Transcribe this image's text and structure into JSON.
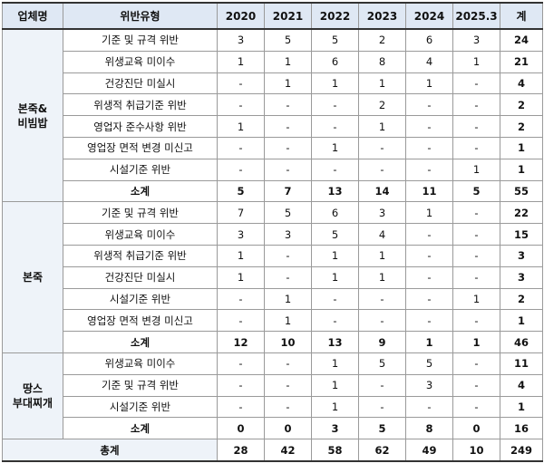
{
  "table": {
    "headers": [
      "업체명",
      "위반유형",
      "2020",
      "2021",
      "2022",
      "2023",
      "2024",
      "2025.3",
      "계"
    ],
    "groups": [
      {
        "name": "본죽&\n비빔밥",
        "rows": [
          {
            "label": "기준 및 규격 위반",
            "values": [
              "3",
              "5",
              "5",
              "2",
              "6",
              "3"
            ],
            "total": "24"
          },
          {
            "label": "위생교육 미이수",
            "values": [
              "1",
              "1",
              "6",
              "8",
              "4",
              "1"
            ],
            "total": "21"
          },
          {
            "label": "건강진단 미실시",
            "values": [
              "-",
              "1",
              "1",
              "1",
              "1",
              "-"
            ],
            "total": "4"
          },
          {
            "label": "위생적 취급기준 위반",
            "values": [
              "-",
              "-",
              "-",
              "2",
              "-",
              "-"
            ],
            "total": "2"
          },
          {
            "label": "영업자 준수사항 위반",
            "values": [
              "1",
              "-",
              "-",
              "1",
              "-",
              "-"
            ],
            "total": "2"
          },
          {
            "label": "영업장 면적 변경 미신고",
            "values": [
              "-",
              "-",
              "1",
              "-",
              "-",
              "-"
            ],
            "total": "1"
          },
          {
            "label": "시설기준 위반",
            "values": [
              "-",
              "-",
              "-",
              "-",
              "-",
              "1"
            ],
            "total": "1"
          }
        ],
        "subtotal": {
          "label": "소계",
          "values": [
            "5",
            "7",
            "13",
            "14",
            "11",
            "5"
          ],
          "total": "55"
        }
      },
      {
        "name": "본죽",
        "rows": [
          {
            "label": "기준 및 규격 위반",
            "values": [
              "7",
              "5",
              "6",
              "3",
              "1",
              "-"
            ],
            "total": "22"
          },
          {
            "label": "위생교육 미이수",
            "values": [
              "3",
              "3",
              "5",
              "4",
              "-",
              "-"
            ],
            "total": "15"
          },
          {
            "label": "위생적 취급기준 위반",
            "values": [
              "1",
              "-",
              "1",
              "1",
              "-",
              "-"
            ],
            "total": "3"
          },
          {
            "label": "건강진단 미실시",
            "values": [
              "1",
              "-",
              "1",
              "1",
              "-",
              "-"
            ],
            "total": "3"
          },
          {
            "label": "시설기준 위반",
            "values": [
              "-",
              "1",
              "-",
              "-",
              "-",
              "1"
            ],
            "total": "2"
          },
          {
            "label": "영업장 면적 변경 미신고",
            "values": [
              "-",
              "1",
              "-",
              "-",
              "-",
              "-"
            ],
            "total": "1"
          }
        ],
        "subtotal": {
          "label": "소계",
          "values": [
            "12",
            "10",
            "13",
            "9",
            "1",
            "1"
          ],
          "total": "46"
        }
      },
      {
        "name": "땅스\n부대찌개",
        "rows": [
          {
            "label": "위생교육 미이수",
            "values": [
              "-",
              "-",
              "1",
              "5",
              "5",
              "-"
            ],
            "total": "11"
          },
          {
            "label": "기준 및 규격 위반",
            "values": [
              "-",
              "-",
              "1",
              "-",
              "3",
              "-"
            ],
            "total": "4"
          },
          {
            "label": "시설기준 위반",
            "values": [
              "-",
              "-",
              "1",
              "-",
              "-",
              "-"
            ],
            "total": "1"
          }
        ],
        "subtotal": {
          "label": "소계",
          "values": [
            "0",
            "0",
            "3",
            "5",
            "8",
            "0"
          ],
          "total": "16"
        }
      }
    ],
    "grand_total": {
      "label": "총계",
      "values": [
        "28",
        "42",
        "58",
        "62",
        "49",
        "10"
      ],
      "total": "249"
    }
  }
}
